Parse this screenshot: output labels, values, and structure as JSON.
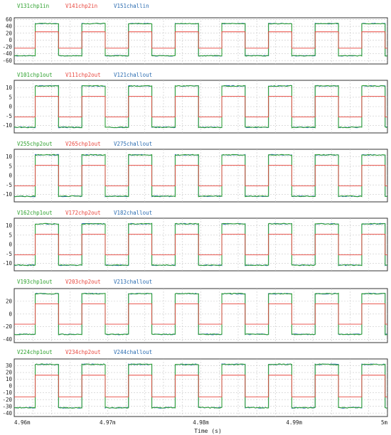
{
  "chart_data": {
    "type": "line",
    "xlabel": "Time (s)",
    "x_tick_labels": [
      "4.96m",
      "4.97m",
      "4.98m",
      "4.99m",
      "5m"
    ],
    "x_ticks": [
      0.00496,
      0.00497,
      0.00498,
      0.00499,
      0.005
    ],
    "xlim": [
      0.00496,
      0.005
    ],
    "grid": true,
    "period_s": 5e-06,
    "first_rise_s": 0.00496225,
    "duty_cycle": 0.5,
    "subplots": [
      {
        "ylim": [
          -70,
          65
        ],
        "yticks": [
          -60,
          -40,
          -20,
          0,
          20,
          40,
          60
        ],
        "series": [
          {
            "name": "V131chp1in",
            "color": "#2ca02c",
            "high": 48,
            "low": -46
          },
          {
            "name": "V141chp2in",
            "color": "#e8453c",
            "high": 24,
            "low": -24
          },
          {
            "name": "V151challin",
            "color": "#2b6cb0",
            "high": 48,
            "low": -46
          }
        ]
      },
      {
        "ylim": [
          -14,
          14
        ],
        "yticks": [
          -15,
          -10,
          -5,
          0,
          5,
          10
        ],
        "series": [
          {
            "name": "V101chp1out",
            "color": "#2ca02c",
            "high": 11,
            "low": -11
          },
          {
            "name": "V111chp2out",
            "color": "#e8453c",
            "high": 5.5,
            "low": -5.5
          },
          {
            "name": "V121challout",
            "color": "#2b6cb0",
            "high": 11,
            "low": -11
          }
        ]
      },
      {
        "ylim": [
          -14,
          14
        ],
        "yticks": [
          -15,
          -10,
          -5,
          0,
          5,
          10,
          15
        ],
        "series": [
          {
            "name": "V255chp2out",
            "color": "#2ca02c",
            "high": 11,
            "low": -11
          },
          {
            "name": "V265chp1out",
            "color": "#e8453c",
            "high": 5.5,
            "low": -5.5
          },
          {
            "name": "V275challout",
            "color": "#2b6cb0",
            "high": 11,
            "low": -11
          }
        ]
      },
      {
        "ylim": [
          -14,
          14
        ],
        "yticks": [
          -15,
          -10,
          -5,
          0,
          5,
          10
        ],
        "series": [
          {
            "name": "V162chp1out",
            "color": "#2ca02c",
            "high": 11,
            "low": -11
          },
          {
            "name": "V172chp2out",
            "color": "#e8453c",
            "high": 5.5,
            "low": -5.5
          },
          {
            "name": "V182challout",
            "color": "#2b6cb0",
            "high": 11,
            "low": -11
          }
        ]
      },
      {
        "ylim": [
          -45,
          40
        ],
        "yticks": [
          -40,
          -20,
          0,
          20
        ],
        "series": [
          {
            "name": "V193chp1out",
            "color": "#2ca02c",
            "high": 32,
            "low": -32
          },
          {
            "name": "V203chp2out",
            "color": "#e8453c",
            "high": 16,
            "low": -16
          },
          {
            "name": "V213challout",
            "color": "#2b6cb0",
            "high": 32,
            "low": -32
          }
        ]
      },
      {
        "ylim": [
          -45,
          40
        ],
        "yticks": [
          -40,
          -30,
          -20,
          -10,
          0,
          10,
          20,
          30
        ],
        "series": [
          {
            "name": "V224chp1out",
            "color": "#2ca02c",
            "high": 32,
            "low": -32
          },
          {
            "name": "V234chp2out",
            "color": "#e8453c",
            "high": 16,
            "low": -16
          },
          {
            "name": "V244challout",
            "color": "#2b6cb0",
            "high": 32,
            "low": -32
          }
        ]
      }
    ]
  }
}
